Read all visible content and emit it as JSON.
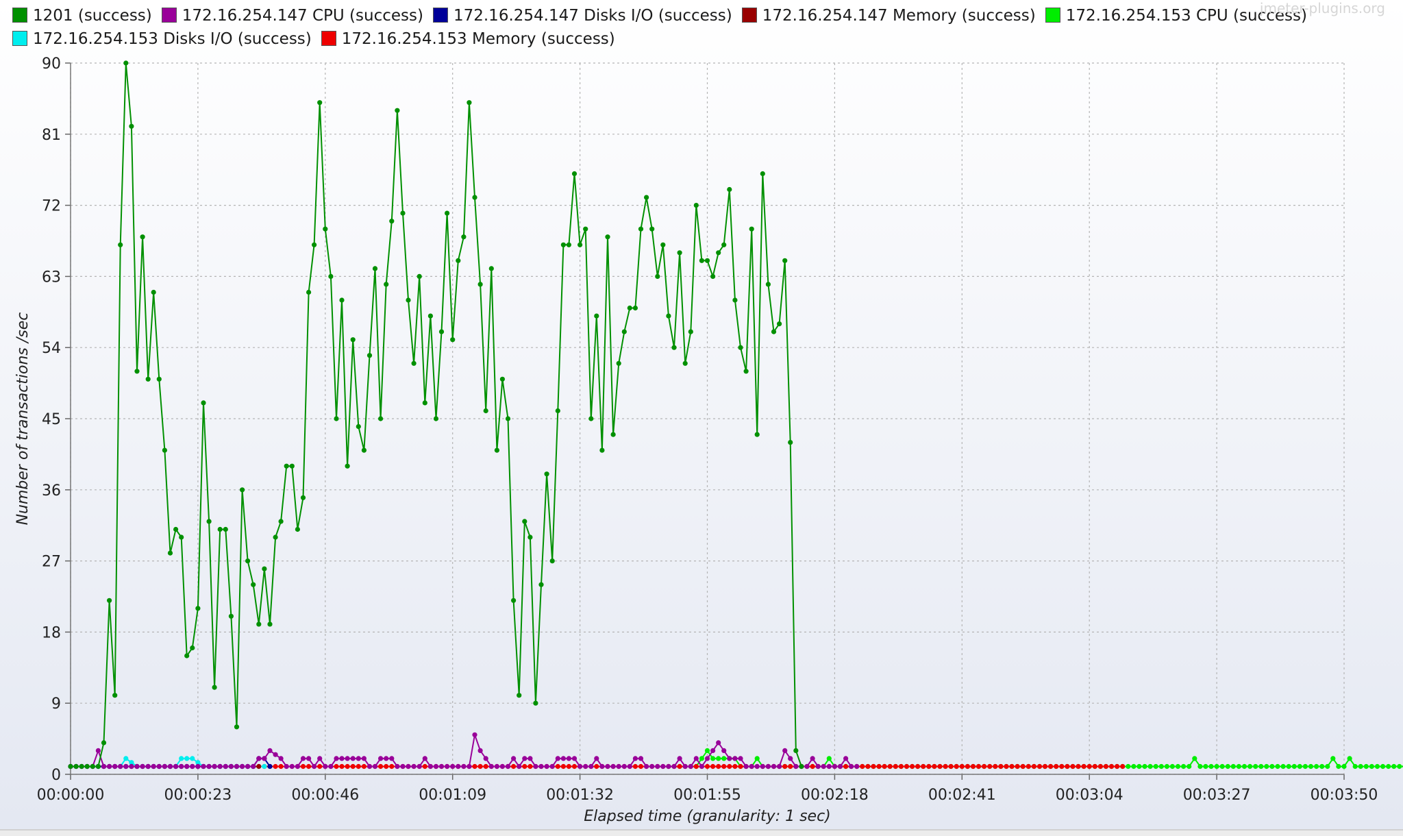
{
  "watermark": "jmeter-plugins.org",
  "chart_data": {
    "type": "line",
    "title": "",
    "xlabel": "Elapsed time (granularity: 1 sec)",
    "ylabel": "Number of transactions /sec",
    "xlim": [
      0,
      230
    ],
    "ylim": [
      0,
      90
    ],
    "y_ticks": [
      "0",
      "9",
      "18",
      "27",
      "36",
      "45",
      "54",
      "63",
      "72",
      "81",
      "90"
    ],
    "x_ticks": [
      "00:00:00",
      "00:00:23",
      "00:00:46",
      "00:01:09",
      "00:01:32",
      "00:01:55",
      "00:02:18",
      "00:02:41",
      "00:03:04",
      "00:03:27",
      "00:03:50"
    ],
    "grid": true,
    "legend_position": "top",
    "series": [
      {
        "name": "1201  (success)",
        "color": "#009000",
        "values": [
          1,
          1,
          1,
          1,
          1,
          1,
          4,
          22,
          10,
          67,
          90,
          82,
          51,
          68,
          50,
          61,
          50,
          41,
          28,
          31,
          30,
          15,
          16,
          21,
          47,
          32,
          11,
          31,
          31,
          20,
          6,
          36,
          27,
          24,
          19,
          26,
          19,
          30,
          32,
          39,
          39,
          31,
          35,
          61,
          67,
          85,
          69,
          63,
          45,
          60,
          39,
          55,
          44,
          41,
          53,
          64,
          45,
          62,
          70,
          84,
          71,
          60,
          52,
          63,
          47,
          58,
          45,
          56,
          71,
          55,
          65,
          68,
          85,
          73,
          62,
          46,
          64,
          41,
          50,
          45,
          22,
          10,
          32,
          30,
          9,
          24,
          38,
          27,
          46,
          67,
          67,
          76,
          67,
          69,
          45,
          58,
          41,
          68,
          43,
          52,
          56,
          59,
          59,
          69,
          73,
          69,
          63,
          67,
          58,
          54,
          66,
          52,
          56,
          72,
          65,
          65,
          63,
          66,
          67,
          74,
          60,
          54,
          51,
          69,
          43,
          76,
          62,
          56,
          57,
          65,
          42,
          3,
          1
        ]
      },
      {
        "name": "172.16.254.147 CPU (success)",
        "color": "#990099",
        "values": [
          1,
          1,
          1,
          1,
          1,
          3,
          1,
          1,
          1,
          1,
          1,
          1,
          1,
          1,
          1,
          1,
          1,
          1,
          1,
          1,
          1,
          1,
          1,
          1,
          1,
          1,
          1,
          1,
          1,
          1,
          1,
          1,
          1,
          1,
          2,
          2,
          3,
          2.5,
          2,
          1,
          1,
          1,
          2,
          2,
          1,
          2,
          1,
          1,
          2,
          2,
          2,
          2,
          2,
          2,
          1,
          1,
          2,
          2,
          2,
          1,
          1,
          1,
          1,
          1,
          2,
          1,
          1,
          1,
          1,
          1,
          1,
          1,
          1,
          5,
          3,
          2,
          1,
          1,
          1,
          1,
          2,
          1,
          2,
          2,
          1,
          1,
          1,
          1,
          2,
          2,
          2,
          2,
          1,
          1,
          1,
          2,
          1,
          1,
          1,
          1,
          1,
          1,
          2,
          2,
          1,
          1,
          1,
          1,
          1,
          1,
          2,
          1,
          1,
          2,
          1,
          2,
          3,
          4,
          3,
          2,
          2,
          2,
          1,
          1,
          1,
          1,
          1,
          1,
          1,
          3,
          2,
          1,
          1,
          1,
          2,
          1,
          1,
          1,
          1,
          1,
          2,
          1,
          1
        ]
      },
      {
        "name": "172.16.254.147 Disks I/O (success)",
        "color": "#000099",
        "values": [
          1,
          1,
          1,
          1,
          1,
          1,
          1,
          1,
          1,
          1,
          1,
          1,
          1,
          1,
          1,
          1,
          1,
          1,
          1,
          1,
          1,
          1,
          1,
          1,
          1,
          1,
          1,
          1,
          1,
          1,
          1,
          1,
          1,
          1,
          2,
          2,
          1
        ]
      },
      {
        "name": "172.16.254.147 Memory (success)",
        "color": "#990000",
        "values": [
          1,
          1,
          1,
          1,
          1,
          1,
          1,
          1,
          1,
          1,
          1,
          1,
          1,
          1,
          1,
          1,
          1,
          1,
          1,
          1,
          1,
          1,
          1,
          1,
          1,
          1,
          1,
          1,
          1,
          1,
          1,
          1,
          1,
          1,
          1
        ]
      },
      {
        "name": "172.16.254.153 CPU (success)",
        "color": "#00ee00",
        "x_start": 108,
        "values": [
          1,
          1,
          1,
          1,
          1,
          1,
          2,
          3,
          2,
          2,
          2,
          2,
          2,
          1,
          1,
          1,
          2,
          1,
          1,
          1,
          1,
          1,
          1,
          1,
          1,
          1,
          1,
          1,
          1,
          2,
          1,
          1,
          1,
          1,
          1,
          1,
          1,
          1,
          1,
          1,
          1,
          1,
          1,
          1,
          1,
          1,
          1,
          1,
          1,
          1,
          1,
          1,
          1,
          1,
          1,
          1,
          1,
          1,
          1,
          1,
          1,
          1,
          1,
          1,
          1,
          1,
          1,
          1,
          1,
          1,
          1,
          1,
          1,
          1,
          1,
          1,
          1,
          1,
          1,
          1,
          1,
          1,
          1,
          1,
          1,
          1,
          1,
          1,
          1,
          1,
          1,
          1,
          1,
          1,
          1,
          2,
          1,
          1,
          1,
          1,
          1,
          1,
          1,
          1,
          1,
          1,
          1,
          1,
          1,
          1,
          1,
          1,
          1,
          1,
          1,
          1,
          1,
          1,
          1,
          1,
          2,
          1,
          1,
          2,
          1,
          1,
          1,
          1,
          1,
          1,
          1,
          1,
          1,
          1,
          1,
          1,
          1,
          1,
          1,
          1,
          1,
          1,
          1,
          1,
          1,
          1,
          1,
          1,
          1,
          1,
          1,
          1,
          1,
          1,
          1,
          1,
          1,
          1,
          1,
          1,
          1,
          1,
          1,
          1,
          1,
          1,
          1,
          1,
          1,
          1,
          1,
          1,
          1,
          1,
          1,
          1,
          1,
          1,
          1,
          1,
          1,
          1,
          1,
          1,
          1,
          1,
          1,
          1,
          1,
          1,
          1,
          1,
          1,
          1,
          1,
          1,
          1,
          1,
          1,
          1,
          1,
          1,
          1,
          1,
          1,
          2,
          1,
          1,
          1,
          1,
          1,
          1,
          1,
          1,
          1,
          1,
          1,
          1,
          1,
          1,
          1,
          1,
          1,
          1,
          1,
          1,
          1,
          1,
          1,
          1
        ]
      },
      {
        "name": "172.16.254.153 Disks I/O (success)",
        "color": "#00eeee",
        "values": [
          1,
          1,
          1,
          1,
          1,
          1,
          1,
          1,
          1,
          1,
          2,
          1.5,
          1,
          1,
          1,
          1,
          1,
          1,
          1,
          1,
          2,
          2,
          2,
          1.5,
          1,
          1,
          1,
          1,
          1,
          1,
          1,
          1,
          1,
          1,
          1,
          1
        ]
      },
      {
        "name": "172.16.254.153 Memory (success)",
        "color": "#ee0000",
        "x_start": 35,
        "values": [
          1,
          1,
          1,
          1,
          1,
          1,
          1,
          1,
          1,
          1,
          1,
          1,
          1,
          1,
          1,
          1,
          1,
          1,
          1,
          1,
          1,
          1,
          1,
          1,
          1,
          1,
          1,
          1,
          1,
          1,
          1,
          1,
          1,
          1,
          1,
          1,
          1,
          1,
          1,
          1,
          1,
          1,
          1,
          1,
          1,
          1,
          1,
          1,
          1,
          1,
          1,
          1,
          1,
          1,
          1,
          1,
          1,
          1,
          1,
          1,
          1,
          1,
          1,
          1,
          1,
          1,
          1,
          1,
          1,
          1,
          1,
          1,
          1,
          1,
          1,
          1,
          1,
          1,
          1,
          1,
          1,
          1,
          1,
          1,
          1,
          1,
          1,
          1,
          1,
          1,
          1,
          1,
          1,
          1,
          1,
          1,
          1,
          1,
          1,
          1,
          1,
          1,
          1,
          1,
          1,
          1,
          1,
          1,
          1,
          1,
          1,
          1,
          1,
          1,
          1,
          1,
          1,
          1,
          1,
          1,
          1,
          1,
          1,
          1,
          1,
          1,
          1,
          1,
          1,
          1,
          1,
          1,
          1,
          1,
          1,
          1,
          1,
          1,
          1,
          1,
          1,
          1,
          1,
          1,
          1,
          1,
          1,
          1,
          1,
          1,
          1,
          1,
          1,
          1,
          1,
          1
        ]
      }
    ]
  }
}
